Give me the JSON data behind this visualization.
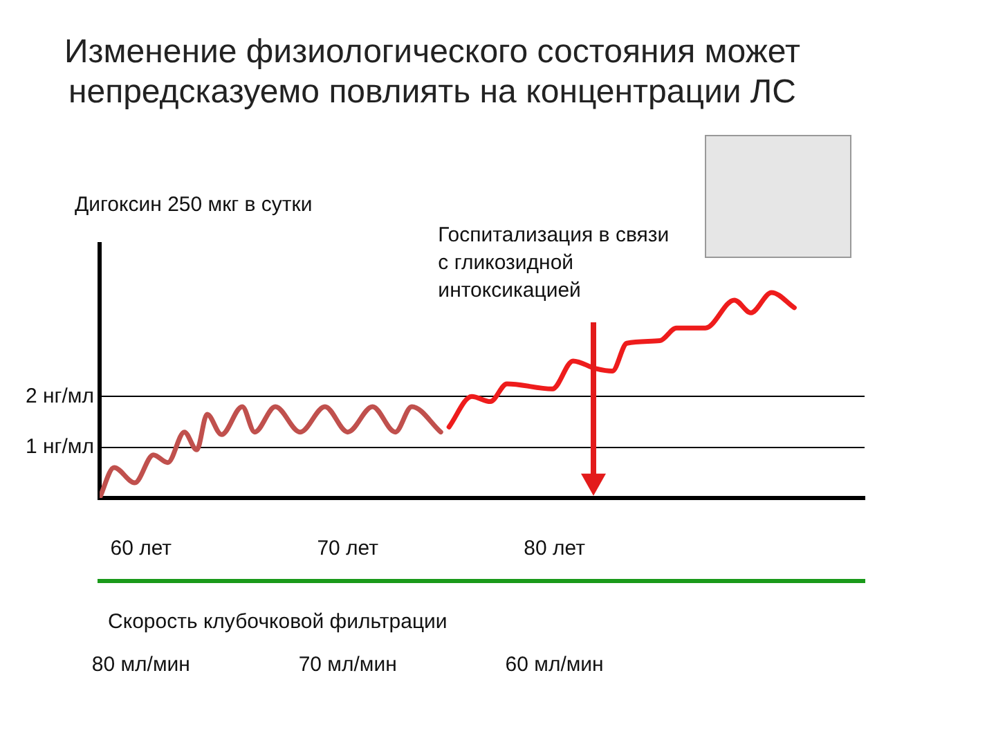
{
  "chart_data": {
    "type": "line",
    "title": [
      "Изменение физиологического состояния может",
      "непредсказуемо повлиять на концентрации ЛС"
    ],
    "annotations": [
      "Дигоксин 250 мкг в сутки",
      "Госпитализация в связи с гликозидной интоксикацией"
    ],
    "series": [
      {
        "color": "#c0504d",
        "x": [
          58,
          58.7,
          59.7,
          60.6,
          61.3,
          62.1,
          62.7,
          63.2,
          63.9,
          64.9,
          65.5,
          66.5,
          67.7,
          68.9,
          70,
          71.2,
          72.3,
          73.1,
          74.5
        ],
        "values": [
          0,
          0.6,
          0.3,
          0.85,
          0.7,
          1.3,
          0.95,
          1.65,
          1.25,
          1.8,
          1.3,
          1.8,
          1.3,
          1.8,
          1.3,
          1.8,
          1.3,
          1.8,
          1.3
        ]
      },
      {
        "color": "#ee1c1c",
        "x": [
          74.9,
          76,
          76.9,
          77.7,
          79.9,
          80.9,
          82,
          82.8,
          83.5,
          85.1,
          85.9,
          87.3,
          88.7,
          89.5,
          90.5,
          91.6
        ],
        "values": [
          1.4,
          2,
          1.9,
          2.25,
          2.15,
          2.7,
          2.55,
          2.5,
          3.05,
          3.1,
          3.35,
          3.35,
          3.9,
          3.65,
          4.05,
          3.75
        ]
      }
    ],
    "xlim": [
      58,
      95
    ],
    "xticks": [
      {
        "value": 60,
        "label": "60 лет"
      },
      {
        "value": 70,
        "label": "70 лет"
      },
      {
        "value": 80,
        "label": "80 лет"
      }
    ],
    "ylim": [
      0,
      5
    ],
    "yticks": [
      {
        "value": 1,
        "label": "1 нг/мл"
      },
      {
        "value": 2,
        "label": "2 нг/мл"
      }
    ],
    "x2lim": [
      82,
      45
    ],
    "x2ticks": [
      {
        "value": 80,
        "label": "80 мл/мин"
      },
      {
        "value": 70,
        "label": "70 мл/мин"
      },
      {
        "value": 60,
        "label": "60 мл/мин"
      }
    ],
    "x2label": "Скорость клубочковой фильтрации",
    "grid": "y",
    "legend": false,
    "marker": "none",
    "line_style": "solid"
  }
}
